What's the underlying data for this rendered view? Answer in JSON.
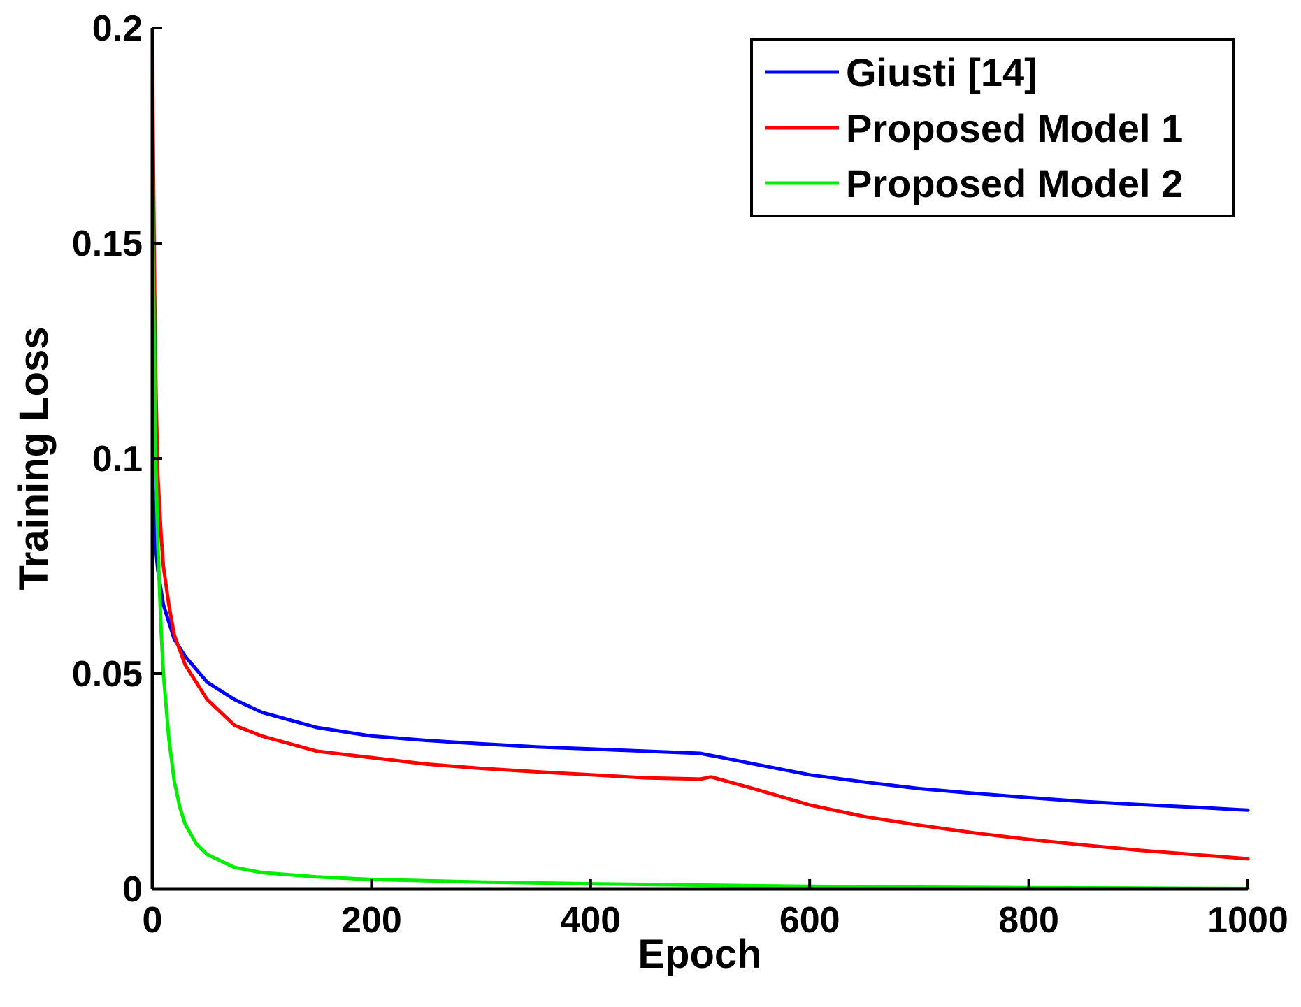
{
  "chart_data": {
    "type": "line",
    "xlabel": "Epoch",
    "ylabel": "Training Loss",
    "xlim": [
      0,
      1000
    ],
    "ylim": [
      0,
      0.2
    ],
    "xticks": [
      0,
      200,
      400,
      600,
      800,
      1000
    ],
    "xtick_labels": [
      "0",
      "200",
      "400",
      "600",
      "800",
      "1000"
    ],
    "yticks": [
      0,
      0.05,
      0.1,
      0.15,
      0.2
    ],
    "ytick_labels": [
      "0",
      "0.05",
      "0.1",
      "0.15",
      "0.2"
    ],
    "grid": false,
    "legend_position": "top-right",
    "series": [
      {
        "name": "Giusti [14]",
        "color": "#0000ff",
        "x": [
          0,
          2,
          5,
          10,
          20,
          30,
          50,
          75,
          100,
          150,
          200,
          250,
          300,
          350,
          400,
          450,
          500,
          520,
          550,
          600,
          650,
          700,
          750,
          800,
          850,
          900,
          950,
          1000
        ],
        "y": [
          0.097,
          0.082,
          0.074,
          0.066,
          0.058,
          0.054,
          0.048,
          0.044,
          0.041,
          0.0375,
          0.0355,
          0.0345,
          0.0337,
          0.033,
          0.0325,
          0.032,
          0.0315,
          0.0305,
          0.029,
          0.0265,
          0.0248,
          0.0233,
          0.0222,
          0.0212,
          0.0203,
          0.0196,
          0.019,
          0.0183
        ]
      },
      {
        "name": "Proposed Model 1",
        "color": "#ff0000",
        "x": [
          0,
          1,
          2,
          3,
          5,
          8,
          10,
          15,
          20,
          30,
          50,
          75,
          100,
          150,
          200,
          250,
          300,
          350,
          400,
          450,
          500,
          510,
          550,
          600,
          650,
          700,
          750,
          800,
          850,
          900,
          950,
          1000
        ],
        "y": [
          0.195,
          0.165,
          0.14,
          0.118,
          0.096,
          0.082,
          0.075,
          0.066,
          0.059,
          0.052,
          0.044,
          0.038,
          0.0355,
          0.032,
          0.0305,
          0.029,
          0.028,
          0.0272,
          0.0265,
          0.0258,
          0.0255,
          0.026,
          0.0232,
          0.0195,
          0.0168,
          0.0148,
          0.013,
          0.0115,
          0.0102,
          0.009,
          0.008,
          0.007
        ]
      },
      {
        "name": "Proposed Model 2",
        "color": "#00ee00",
        "x": [
          0,
          1,
          2,
          3,
          5,
          8,
          10,
          15,
          20,
          25,
          30,
          40,
          50,
          75,
          100,
          150,
          200,
          300,
          400,
          500,
          600,
          700,
          800,
          900,
          1000
        ],
        "y": [
          0.165,
          0.14,
          0.12,
          0.1,
          0.08,
          0.06,
          0.05,
          0.035,
          0.025,
          0.019,
          0.015,
          0.0105,
          0.008,
          0.005,
          0.0038,
          0.0028,
          0.0022,
          0.0016,
          0.0012,
          0.0009,
          0.0006,
          0.0004,
          0.0003,
          0.0002,
          0.0001
        ]
      }
    ]
  }
}
